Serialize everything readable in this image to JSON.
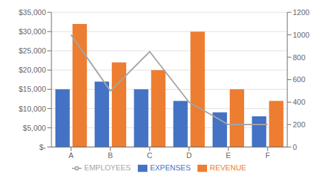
{
  "chart_data": {
    "type": "bar",
    "categories": [
      "A",
      "B",
      "C",
      "D",
      "E",
      "F"
    ],
    "series": [
      {
        "name": "EXPENSES",
        "color": "#4472C4",
        "values": [
          15000,
          17000,
          15000,
          12000,
          9000,
          8000
        ]
      },
      {
        "name": "REVENUE",
        "color": "#ED7D31",
        "values": [
          32000,
          22000,
          20000,
          30000,
          15000,
          12000
        ]
      },
      {
        "name": "EMPLOYEES",
        "color": "#A5A5A5",
        "type": "line",
        "axis": "y2",
        "values": [
          1000,
          500,
          850,
          400,
          200,
          200
        ]
      }
    ],
    "ylim": [
      0,
      35000
    ],
    "yticks": [
      {
        "value": 0,
        "label": "$-"
      },
      {
        "value": 5000,
        "label": "$5,000"
      },
      {
        "value": 10000,
        "label": "$10,000"
      },
      {
        "value": 15000,
        "label": "$15,000"
      },
      {
        "value": 20000,
        "label": "$20,000"
      },
      {
        "value": 25000,
        "label": "$25,000"
      },
      {
        "value": 30000,
        "label": "$30,000"
      },
      {
        "value": 35000,
        "label": "$35,000"
      }
    ],
    "y2lim": [
      0,
      1200
    ],
    "y2ticks": [
      0,
      200,
      400,
      600,
      800,
      1000,
      1200
    ],
    "grid": true,
    "legend": "bottom"
  }
}
